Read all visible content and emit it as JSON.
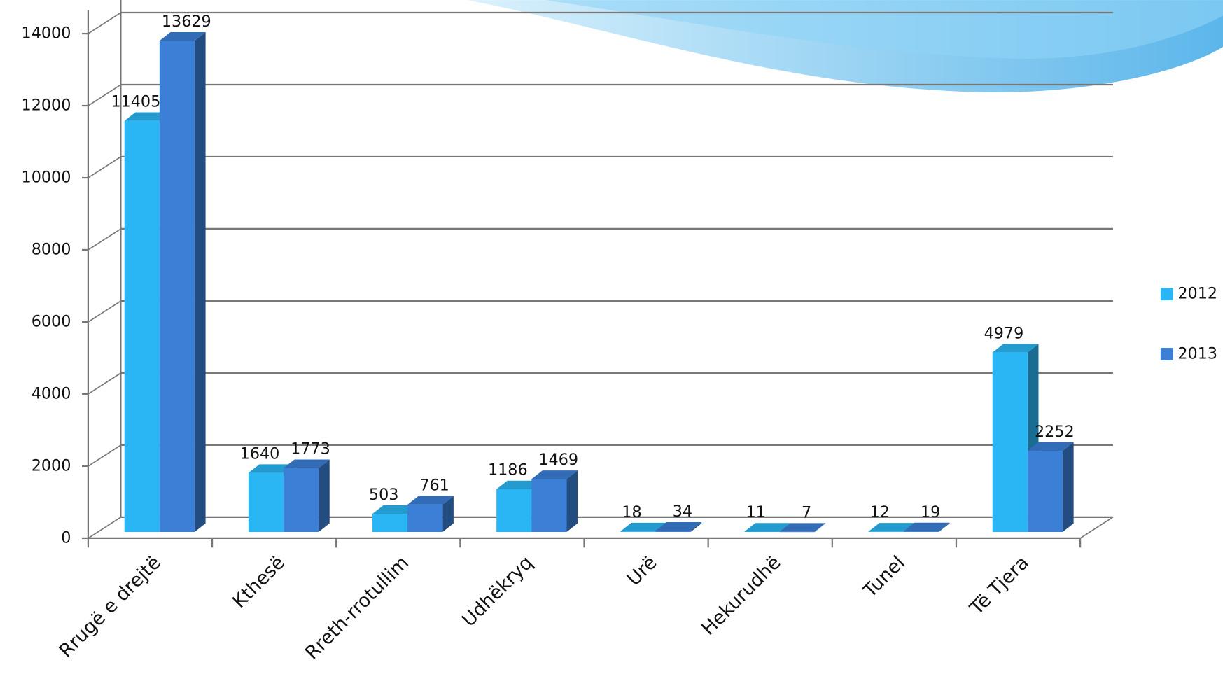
{
  "chart_data": {
    "type": "bar3d",
    "categories": [
      "Rrugë e drejtë",
      "Kthesë",
      "Rreth-rrotullim",
      "Udhëkryq",
      "Urë",
      "Hekurudhë",
      "Tunel",
      "Të Tjera"
    ],
    "series": [
      {
        "name": "2012",
        "color": "#2ab6f4",
        "values": [
          11405,
          1640,
          503,
          1186,
          18,
          11,
          12,
          4979
        ]
      },
      {
        "name": "2013",
        "color": "#3b7fd6",
        "values": [
          13629,
          1773,
          761,
          1469,
          34,
          7,
          19,
          2252
        ]
      }
    ],
    "ylim": [
      0,
      14000
    ],
    "yticks": [
      0,
      2000,
      4000,
      6000,
      8000,
      10000,
      12000,
      14000
    ],
    "grid": true,
    "legend": "right"
  }
}
